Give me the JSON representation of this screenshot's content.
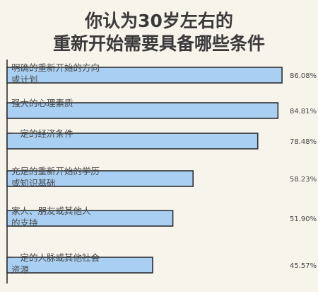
{
  "chart_data": {
    "type": "bar",
    "orientation": "horizontal",
    "title": [
      "你认为30岁左右的",
      "重新开始需要具备哪些条件"
    ],
    "categories": [
      [
        "明确的重新开始的方向",
        "或计划"
      ],
      [
        "强大的心理素质"
      ],
      [
        "一定的经济条件"
      ],
      [
        "充足的重新开始的学历",
        "或知识基础"
      ],
      [
        "家人、朋友或其他人",
        "的支持"
      ],
      [
        "一定的人脉或其他社会",
        "资源"
      ]
    ],
    "values": [
      86.08,
      84.81,
      78.48,
      58.23,
      51.9,
      45.57
    ],
    "value_labels": [
      "86.08%",
      "84.81%",
      "78.48%",
      "58.23%",
      "51.90%",
      "45.57%"
    ],
    "xlim": [
      0,
      100
    ],
    "colors": {
      "bar_fill": "#a9d0f3",
      "bar_stroke": "#2f2f2f",
      "background": "#f7f4ec"
    }
  }
}
